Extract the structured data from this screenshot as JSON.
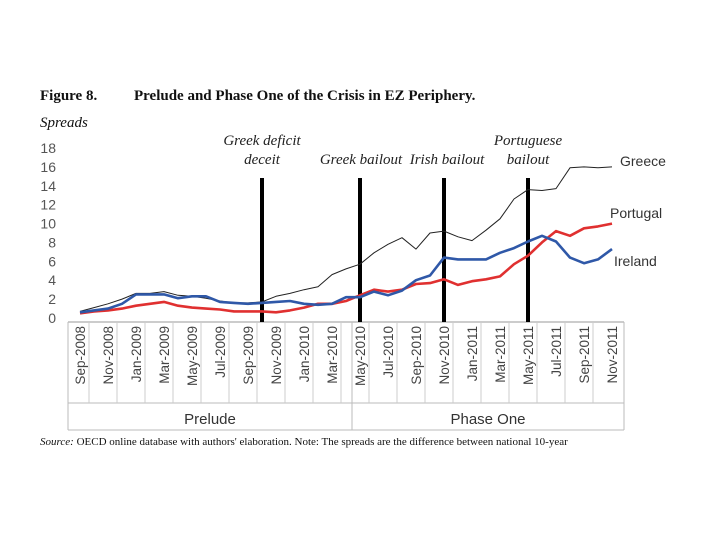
{
  "figure": {
    "label": "Figure 8.",
    "title": "Prelude and Phase One of the Crisis in EZ Periphery.",
    "units": "Spreads",
    "source_label": "Source:",
    "source_text": "OECD online database with authors' elaboration. Note: The spreads are the difference between national 10-year"
  },
  "colors": {
    "greece": "#222222",
    "portugal": "#e03030",
    "ireland": "#2f58a8",
    "event_line": "#000000"
  },
  "chart_data": {
    "type": "line",
    "title": "Prelude and Phase One of the Crisis in EZ Periphery.",
    "ylabel": "Spreads",
    "xlabel": "",
    "ylim": [
      0,
      18
    ],
    "yticks": [
      "0",
      "2",
      "4",
      "6",
      "8",
      "10",
      "12",
      "14",
      "16",
      "18"
    ],
    "x": [
      "Sep-2008",
      "Oct-2008",
      "Nov-2008",
      "Dec-2008",
      "Jan-2009",
      "Feb-2009",
      "Mar-2009",
      "Apr-2009",
      "May-2009",
      "Jun-2009",
      "Jul-2009",
      "Aug-2009",
      "Sep-2009",
      "Oct-2009",
      "Nov-2009",
      "Dec-2009",
      "Jan-2010",
      "Feb-2010",
      "Mar-2010",
      "Apr-2010",
      "May-2010",
      "Jun-2010",
      "Jul-2010",
      "Aug-2010",
      "Sep-2010",
      "Oct-2010",
      "Nov-2010",
      "Dec-2010",
      "Jan-2011",
      "Feb-2011",
      "Mar-2011",
      "Apr-2011",
      "May-2011",
      "Jun-2011",
      "Jul-2011",
      "Aug-2011",
      "Sep-2011",
      "Oct-2011",
      "Nov-2011"
    ],
    "xtick_labels": [
      "Sep-2008",
      "Nov-2008",
      "Jan-2009",
      "Mar-2009",
      "May-2009",
      "Jul-2009",
      "Sep-2009",
      "Nov-2009",
      "Jan-2010",
      "Mar-2010",
      "May-2010",
      "Jul-2010",
      "Sep-2010",
      "Nov-2010",
      "Jan-2011",
      "Mar-2011",
      "May-2011",
      "Jul-2011",
      "Sep-2011",
      "Nov-2011"
    ],
    "series": [
      {
        "name": "Greece",
        "key": "greece",
        "values": [
          0.7,
          1.1,
          1.5,
          2.0,
          2.6,
          2.6,
          2.8,
          2.4,
          2.3,
          2.1,
          1.8,
          1.6,
          1.6,
          1.7,
          2.3,
          2.6,
          3.0,
          3.3,
          4.6,
          5.2,
          5.7,
          6.9,
          7.8,
          8.5,
          7.3,
          9.0,
          9.2,
          8.6,
          8.2,
          9.3,
          10.5,
          12.6,
          13.6,
          13.5,
          13.7,
          15.9,
          16.0,
          15.9,
          16.0
        ]
      },
      {
        "name": "Portugal",
        "key": "portugal",
        "values": [
          0.5,
          0.7,
          0.8,
          1.0,
          1.3,
          1.5,
          1.7,
          1.3,
          1.1,
          1.0,
          0.9,
          0.7,
          0.7,
          0.7,
          0.6,
          0.8,
          1.1,
          1.5,
          1.5,
          1.8,
          2.4,
          3.0,
          2.8,
          3.0,
          3.6,
          3.7,
          4.1,
          3.5,
          3.9,
          4.1,
          4.4,
          5.7,
          6.6,
          8.0,
          9.2,
          8.7,
          9.5,
          9.7,
          10.0
        ]
      },
      {
        "name": "Ireland",
        "key": "ireland",
        "values": [
          0.6,
          0.8,
          1.0,
          1.5,
          2.5,
          2.5,
          2.5,
          2.1,
          2.3,
          2.3,
          1.7,
          1.6,
          1.5,
          1.6,
          1.7,
          1.8,
          1.5,
          1.4,
          1.5,
          2.2,
          2.2,
          2.8,
          2.4,
          2.9,
          4.0,
          4.5,
          6.4,
          6.2,
          6.2,
          6.2,
          6.9,
          7.4,
          8.1,
          8.7,
          8.1,
          6.4,
          5.8,
          6.2,
          7.3
        ]
      }
    ],
    "events": [
      {
        "index": 13,
        "label_lines": [
          "Greek deficit",
          "deceit"
        ]
      },
      {
        "index": 20,
        "label_lines": [
          "Greek bailout"
        ]
      },
      {
        "index": 26,
        "label_lines": [
          "Irish bailout"
        ]
      },
      {
        "index": 32,
        "label_lines": [
          "Portuguese",
          "bailout"
        ]
      }
    ],
    "phases": [
      {
        "name": "Prelude",
        "start": 0,
        "end": 20
      },
      {
        "name": "Phase One",
        "start": 20,
        "end": 38
      }
    ]
  }
}
